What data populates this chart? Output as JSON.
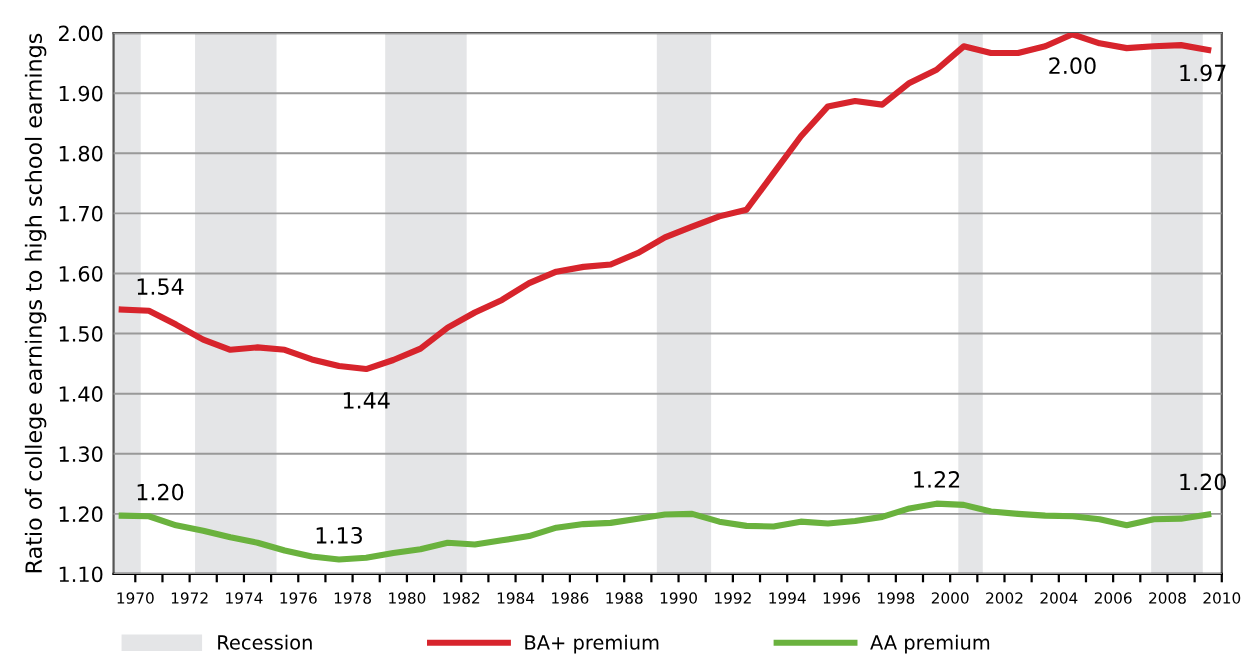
{
  "chart_data": {
    "type": "line",
    "ylabel": "Ratio of college earnings to high school earnings",
    "series": [
      {
        "name": "BA+ premium",
        "color": "#d7242c",
        "x": [
          1969.5,
          1970.5,
          1971.5,
          1972.5,
          1973.5,
          1974.5,
          1975.5,
          1976.5,
          1977.5,
          1978.5,
          1979.5,
          1980.5,
          1981.5,
          1982.5,
          1983.5,
          1984.5,
          1985.5,
          1986.5,
          1987.5,
          1988.5,
          1989.5,
          1990.5,
          1991.5,
          1992.5,
          1993.5,
          1994.5,
          1995.5,
          1996.5,
          1997.5,
          1998.5,
          1999.5,
          2000.5,
          2001.5,
          2002.5,
          2003.5,
          2004.5,
          2005.5,
          2006.5,
          2007.5,
          2008.5,
          2009.5
        ],
        "values": [
          1.54,
          1.538,
          1.515,
          1.49,
          1.473,
          1.477,
          1.473,
          1.457,
          1.446,
          1.441,
          1.456,
          1.475,
          1.51,
          1.535,
          1.556,
          1.584,
          1.603,
          1.611,
          1.615,
          1.634,
          1.66,
          1.678,
          1.695,
          1.706,
          1.767,
          1.828,
          1.878,
          1.887,
          1.881,
          1.917,
          1.939,
          1.978,
          1.967,
          1.967,
          1.978,
          1.998,
          1.983,
          1.975,
          1.978,
          1.98,
          1.972
        ]
      },
      {
        "name": "AA premium",
        "color": "#6ab23e",
        "x": [
          1969.5,
          1970.5,
          1971.5,
          1972.5,
          1973.5,
          1974.5,
          1975.5,
          1976.5,
          1977.5,
          1978.5,
          1979.5,
          1980.5,
          1981.5,
          1982.5,
          1983.5,
          1984.5,
          1985.5,
          1986.5,
          1987.5,
          1988.5,
          1989.5,
          1990.5,
          1991.5,
          1992.5,
          1993.5,
          1994.5,
          1995.5,
          1996.5,
          1997.5,
          1998.5,
          1999.5,
          2000.5,
          2001.5,
          2002.5,
          2003.5,
          2004.5,
          2005.5,
          2006.5,
          2007.5,
          2008.5,
          2009.5
        ],
        "values": [
          1.197,
          1.196,
          1.181,
          1.172,
          1.161,
          1.152,
          1.139,
          1.129,
          1.124,
          1.127,
          1.135,
          1.141,
          1.152,
          1.149,
          1.156,
          1.163,
          1.177,
          1.183,
          1.185,
          1.192,
          1.199,
          1.2,
          1.187,
          1.18,
          1.179,
          1.187,
          1.184,
          1.188,
          1.195,
          1.209,
          1.217,
          1.215,
          1.204,
          1.2,
          1.197,
          1.196,
          1.191,
          1.181,
          1.191,
          1.192,
          1.199
        ]
      }
    ],
    "bands": [
      {
        "axis": "x",
        "from": 1969.2,
        "to": 1970.2,
        "label": "Recession",
        "color": "#e4e5e7"
      },
      {
        "axis": "x",
        "from": 1972.2,
        "to": 1975.2,
        "color": "#e4e5e7"
      },
      {
        "axis": "x",
        "from": 1979.2,
        "to": 1982.2,
        "color": "#e4e5e7"
      },
      {
        "axis": "x",
        "from": 1989.2,
        "to": 1991.2,
        "color": "#e4e5e7"
      },
      {
        "axis": "x",
        "from": 2000.3,
        "to": 2001.2,
        "color": "#e4e5e7"
      },
      {
        "axis": "x",
        "from": 2007.4,
        "to": 2009.3,
        "color": "#e4e5e7"
      }
    ],
    "annotations": [
      {
        "text": "1.54",
        "x": 1970.5,
        "y": 1.538
      },
      {
        "text": "1.44",
        "x": 1978.5,
        "y": 1.441
      },
      {
        "text": "2.00",
        "x": 2004.5,
        "y": 1.998
      },
      {
        "text": "1.97",
        "x": 2009.5,
        "y": 1.972
      },
      {
        "text": "1.20",
        "x": 1970.5,
        "y": 1.196
      },
      {
        "text": "1.13",
        "x": 1977.5,
        "y": 1.124
      },
      {
        "text": "1.22",
        "x": 1999.5,
        "y": 1.217
      },
      {
        "text": "1.20",
        "x": 2009.5,
        "y": 1.199
      }
    ],
    "xlim": [
      1969.2,
      2010
    ],
    "xticks": [
      1970,
      {
        "value": 1971,
        "label": null
      },
      1972,
      {
        "value": 1973,
        "label": null
      },
      1974,
      {
        "value": 1975,
        "label": null
      },
      1976,
      {
        "value": 1977,
        "label": null
      },
      1978,
      {
        "value": 1979,
        "label": null
      },
      1980,
      {
        "value": 1981,
        "label": null
      },
      1982,
      {
        "value": 1983,
        "label": null
      },
      1984,
      {
        "value": 1985,
        "label": null
      },
      1986,
      {
        "value": 1987,
        "label": null
      },
      1988,
      {
        "value": 1989,
        "label": null
      },
      1990,
      {
        "value": 1991,
        "label": null
      },
      1992,
      {
        "value": 1993,
        "label": null
      },
      1994,
      {
        "value": 1995,
        "label": null
      },
      1996,
      {
        "value": 1997,
        "label": null
      },
      1998,
      {
        "value": 1999,
        "label": null
      },
      2000,
      {
        "value": 2001,
        "label": null
      },
      2002,
      {
        "value": 2003,
        "label": null
      },
      2004,
      {
        "value": 2005,
        "label": null
      },
      2006,
      {
        "value": 2007,
        "label": null
      },
      2008,
      {
        "value": 2009,
        "label": null
      },
      2010
    ],
    "ylim": [
      1.1,
      2.0
    ],
    "yticks": [
      {
        "value": 1.1,
        "label": "1.10"
      },
      {
        "value": 1.2,
        "label": "1.20"
      },
      {
        "value": 1.3,
        "label": "1.30"
      },
      {
        "value": 1.4,
        "label": "1.40"
      },
      {
        "value": 1.5,
        "label": "1.50"
      },
      {
        "value": 1.6,
        "label": "1.60"
      },
      {
        "value": 1.7,
        "label": "1.70"
      },
      {
        "value": 1.8,
        "label": "1.80"
      },
      {
        "value": 1.9,
        "label": "1.90"
      },
      {
        "value": 2.0,
        "label": "2.00"
      }
    ],
    "grid": "y",
    "legend": "bottom",
    "marker": "none",
    "line_style": "solid"
  }
}
